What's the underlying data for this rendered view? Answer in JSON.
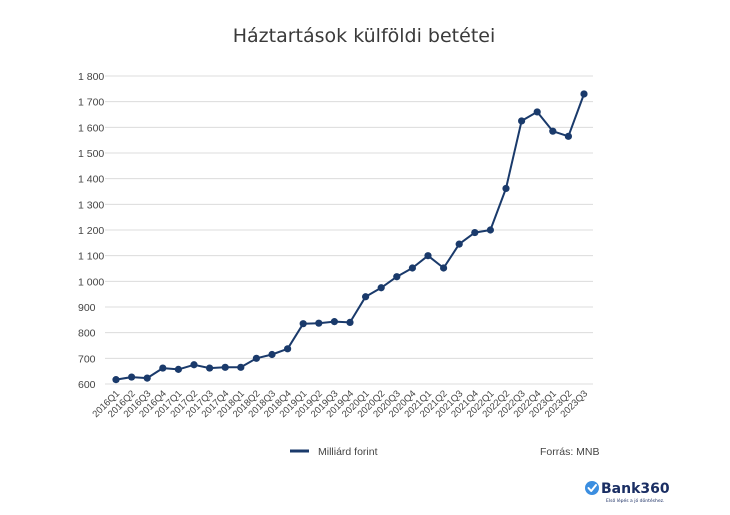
{
  "chart_data": {
    "type": "line",
    "title": "Háztartások külföldi betétei",
    "xlabel": "",
    "ylabel": "",
    "ylim": [
      600,
      1800
    ],
    "yticks": [
      600,
      700,
      800,
      900,
      1000,
      1100,
      1200,
      1300,
      1400,
      1500,
      1600,
      1700,
      1800
    ],
    "ytick_labels": [
      "600",
      "700",
      "800",
      "900",
      "1 000",
      "1 100",
      "1 200",
      "1 300",
      "1 400",
      "1 500",
      "1 600",
      "1 700",
      "1 800"
    ],
    "grid": true,
    "legend_position": "bottom-center",
    "categories": [
      "2016Q1",
      "2016Q2",
      "2016Q3",
      "2016Q4",
      "2017Q1",
      "2017Q2",
      "2017Q3",
      "2017Q4",
      "2018Q1",
      "2018Q2",
      "2018Q3",
      "2018Q4",
      "2019Q1",
      "2019Q2",
      "2019Q3",
      "2019Q4",
      "2020Q1",
      "2020Q2",
      "2020Q3",
      "2020Q4",
      "2021Q1",
      "2021Q2",
      "2021Q3",
      "2021Q4",
      "2022Q1",
      "2022Q2",
      "2022Q3",
      "2022Q4",
      "2023Q1",
      "2023Q2",
      "2023Q3"
    ],
    "series": [
      {
        "name": "Milliárd forint",
        "color": "#1a3a6b",
        "values": [
          617,
          627,
          623,
          662,
          657,
          675,
          662,
          665,
          665,
          700,
          715,
          737,
          835,
          837,
          843,
          840,
          940,
          975,
          1018,
          1052,
          1100,
          1052,
          1145,
          1190,
          1200,
          1362,
          1625,
          1660,
          1585,
          1565,
          1730
        ]
      }
    ]
  },
  "source_label": "Forrás: MNB",
  "logo": {
    "name": "Bank360",
    "tagline": "Első lépés a jó döntéshez."
  }
}
